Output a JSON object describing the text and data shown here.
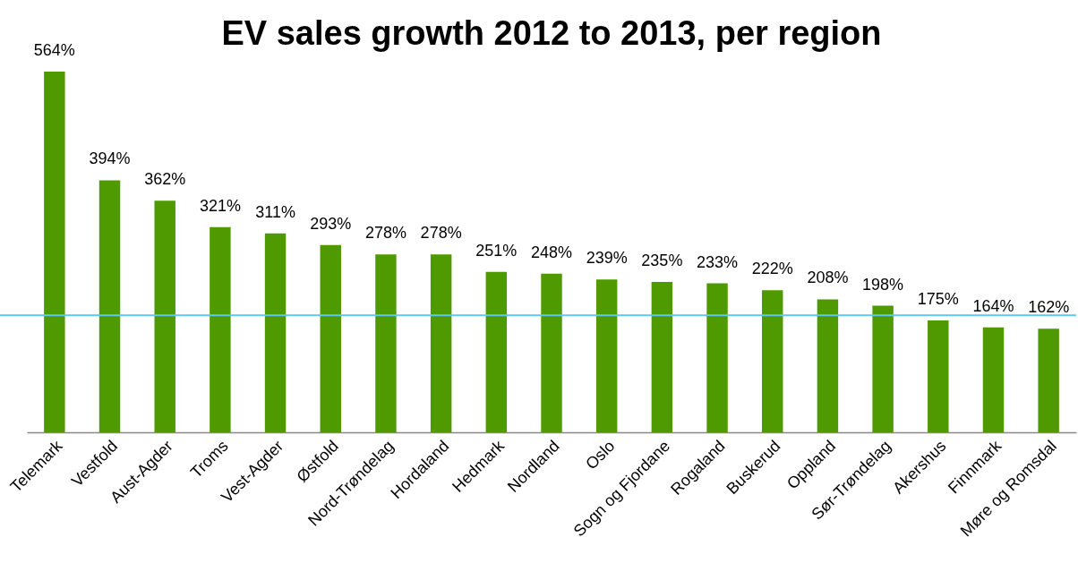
{
  "chart_data": {
    "type": "bar",
    "title": "EV sales growth 2012 to 2013, per region",
    "categories": [
      "Telemark",
      "Vestfold",
      "Aust-Agder",
      "Troms",
      "Vest-Agder",
      "Østfold",
      "Nord-Trøndelag",
      "Hordaland",
      "Hedmark",
      "Nordland",
      "Oslo",
      "Sogn og Fjordane",
      "Rogaland",
      "Buskerud",
      "Oppland",
      "Sør-Trøndelag",
      "Akershus",
      "Finnmark",
      "Møre og Romsdal"
    ],
    "values": [
      564,
      394,
      362,
      321,
      311,
      293,
      278,
      278,
      251,
      248,
      239,
      235,
      233,
      222,
      208,
      198,
      175,
      164,
      162
    ],
    "value_labels": [
      "564%",
      "394%",
      "362%",
      "321%",
      "311%",
      "293%",
      "278%",
      "278%",
      "251%",
      "248%",
      "239%",
      "235%",
      "233%",
      "222%",
      "208%",
      "198%",
      "175%",
      "164%",
      "162%"
    ],
    "color": "#4e9a00",
    "ref_lines": [
      {
        "axis": "y",
        "value": 183,
        "color": "#5bc8f5"
      }
    ]
  }
}
